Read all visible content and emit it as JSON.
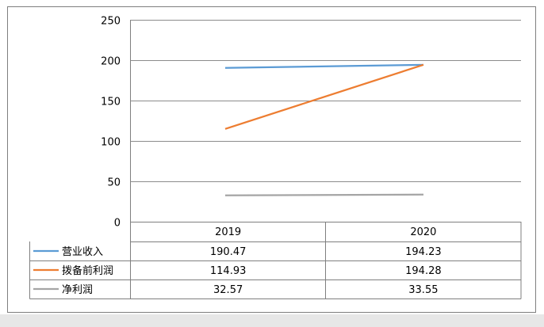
{
  "chart_data": {
    "type": "line",
    "categories": [
      "2019",
      "2020"
    ],
    "series": [
      {
        "name": "营业收入",
        "values": [
          190.47,
          194.23
        ],
        "color": "#5B9BD5"
      },
      {
        "name": "拨备前利润",
        "values": [
          114.93,
          194.28
        ],
        "color": "#ED7D31"
      },
      {
        "name": "净利润",
        "values": [
          32.57,
          33.55
        ],
        "color": "#A5A5A5"
      }
    ],
    "yticks": [
      "0",
      "50",
      "100",
      "150",
      "200",
      "250"
    ],
    "ylim": [
      0,
      250
    ],
    "grid": true,
    "legend": "data-table",
    "table": {
      "rows": [
        {
          "legend": "营业收入",
          "cells": [
            "190.47",
            "194.23"
          ]
        },
        {
          "legend": "拨备前利润",
          "cells": [
            "114.93",
            "194.28"
          ]
        },
        {
          "legend": "净利润",
          "cells": [
            "32.57",
            "33.55"
          ]
        }
      ]
    }
  }
}
